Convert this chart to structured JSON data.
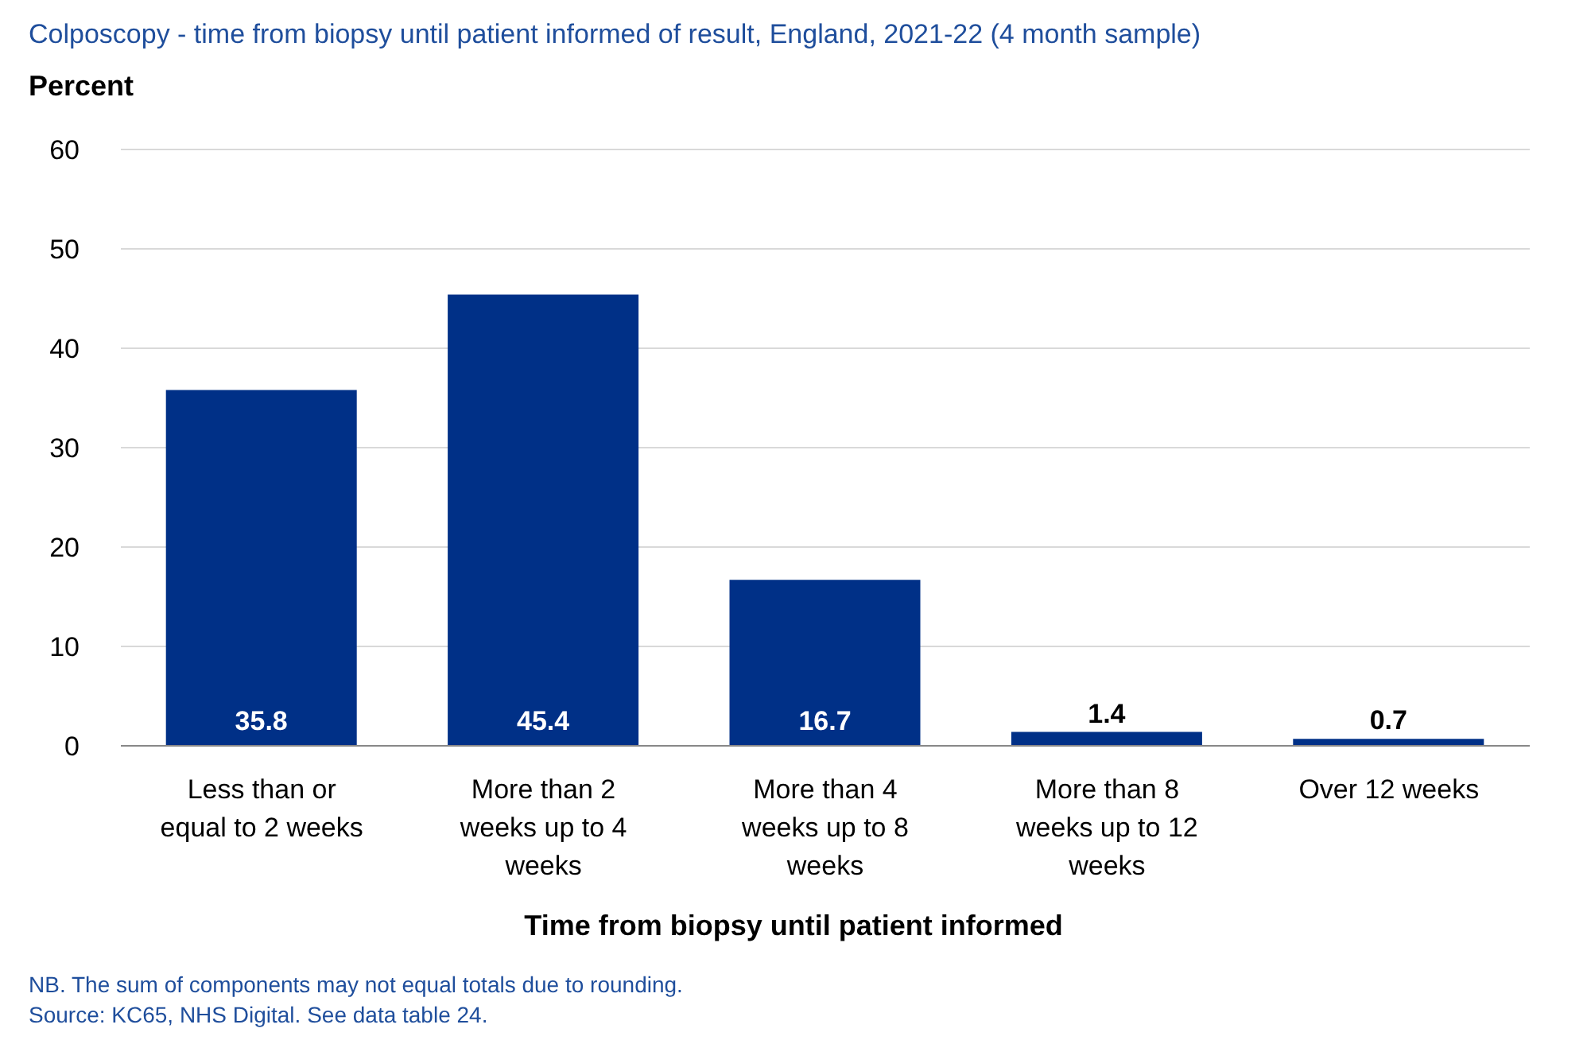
{
  "chart_data": {
    "type": "bar",
    "title": "Colposcopy - time from biopsy until patient informed of result, England, 2021-22 (4 month sample)",
    "ylabel": "Percent",
    "xlabel": "Time from biopsy  until patient informed",
    "categories": [
      "Less than or equal to 2 weeks",
      "More than 2 weeks up to 4 weeks",
      "More than 4 weeks up to 8 weeks",
      "More than 8 weeks up to 12 weeks",
      "Over 12 weeks"
    ],
    "values": [
      35.8,
      45.4,
      16.7,
      1.4,
      0.7
    ],
    "color": "#003087",
    "ylim": [
      0,
      60
    ],
    "yticks": [
      0,
      10,
      20,
      30,
      40,
      50,
      60
    ],
    "grid": "y",
    "data_labels": true,
    "annotations": [
      "NB. The sum of components may not equal totals due to rounding.",
      "Source: KC65, NHS Digital. See data table 24."
    ]
  }
}
